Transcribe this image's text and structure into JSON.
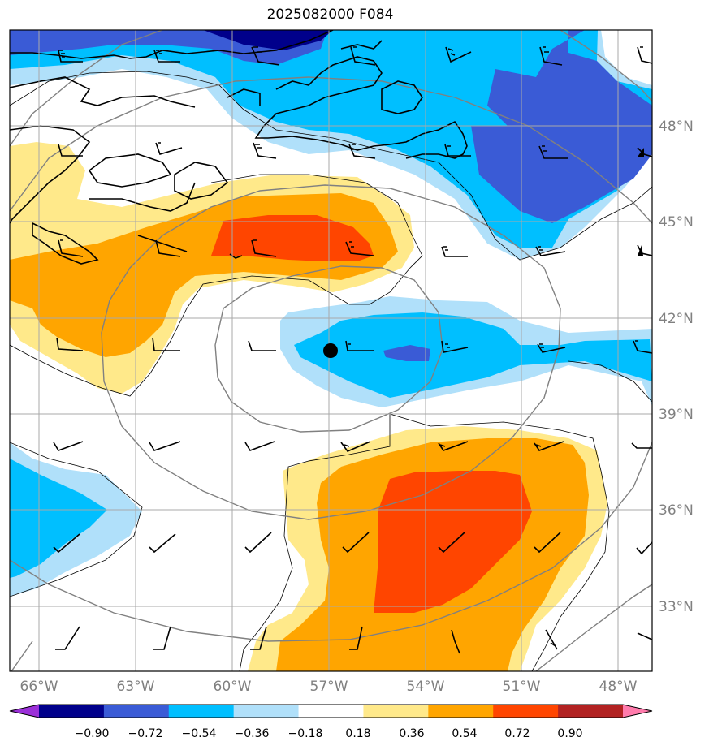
{
  "title": "2025082000 F084",
  "lon_labels": [
    "66°W",
    "63°W",
    "60°W",
    "57°W",
    "54°W",
    "51°W",
    "48°W"
  ],
  "lat_labels": [
    "48°N",
    "45°N",
    "42°N",
    "39°N",
    "36°N",
    "33°N"
  ],
  "colorbar": {
    "ticks": [
      "−0.90",
      "−0.72",
      "−0.54",
      "−0.36",
      "−0.18",
      "0.18",
      "0.36",
      "0.54",
      "0.72",
      "0.90"
    ],
    "colors": [
      "#9b30d8",
      "#00008b",
      "#3a5bd6",
      "#00bfff",
      "#b0e0fa",
      "#ffffff",
      "#ffe98a",
      "#ffa500",
      "#ff4500",
      "#b22222",
      "#ff7bac"
    ]
  },
  "marker": {
    "label": "center-point",
    "lon": "57°W",
    "lat": "41°N"
  }
}
